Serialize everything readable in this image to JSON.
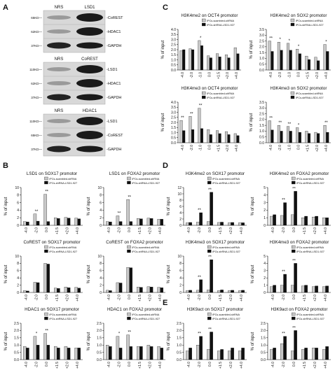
{
  "panel_labels": [
    "A",
    "B",
    "C",
    "D",
    "E"
  ],
  "blots": [
    {
      "header": [
        "NRS",
        "LSD1"
      ],
      "weights": [
        "65KD—",
        "62KD—",
        "37KD—"
      ],
      "proteins": [
        "-CoREST",
        "-HDAC1",
        "-GAPDH"
      ]
    },
    {
      "header": [
        "NRS",
        "CoREST"
      ],
      "weights": [
        "110KD—",
        "62KD—",
        "37KD—"
      ],
      "proteins": [
        "-LSD1",
        "-HDAC1",
        "-GAPDH"
      ]
    },
    {
      "header": [
        "NRS",
        "HDAC1"
      ],
      "weights": [
        "110KD—",
        "65KD—",
        "37KD—"
      ],
      "proteins": [
        "-LSD1",
        "-CoREST",
        "-GAPDH"
      ]
    }
  ],
  "chart_data": [
    {
      "type": "bar",
      "title": "H3K4me2 on OCT4 promotor",
      "y_label": "% of input",
      "categories": [
        "-4.0",
        "-2.0",
        "-1.0",
        "0.0",
        "+1.5",
        "+2.0",
        "+4.0"
      ],
      "series": [
        {
          "name": "iPCs-scambled-shRNA",
          "color": "#c8c8c8",
          "values": [
            1.9,
            2.1,
            2.9,
            1.4,
            1.6,
            1.5,
            2.2
          ]
        },
        {
          "name": "iPCs-shRNA-LSD1-927",
          "color": "#111111",
          "values": [
            2.0,
            2.0,
            2.4,
            1.2,
            1.3,
            1.2,
            1.6
          ]
        }
      ],
      "ylim": [
        0,
        4
      ],
      "yticks": [
        {
          "value": 0,
          "label": "0.0"
        },
        0.5,
        {
          "value": 1,
          "label": "1.0"
        },
        1.5,
        {
          "value": 2,
          "label": "2.0"
        },
        2.5,
        {
          "value": 3,
          "label": "3.0"
        },
        3.5,
        {
          "value": 4,
          "label": "4.0"
        }
      ],
      "annotations": [
        {
          "category": "-1.0",
          "text": "*"
        }
      ]
    },
    {
      "type": "bar",
      "title": "H3K4me2 on SOX2 promotor",
      "y_label": "% of input",
      "categories": [
        "-4.0",
        "-2.0",
        "-1.0",
        "0.0",
        "+1.5",
        "+2.0",
        "+4.0"
      ],
      "series": [
        {
          "name": "iPCs-scambled-shRNA",
          "color": "#c8c8c8",
          "values": [
            2.5,
            2.4,
            2.3,
            1.8,
            1.2,
            1.1,
            2.2
          ]
        },
        {
          "name": "iPCs-shRNA-LSD1-927",
          "color": "#111111",
          "values": [
            1.6,
            1.7,
            1.7,
            1.4,
            0.9,
            0.8,
            1.6
          ]
        }
      ],
      "ylim": [
        0,
        3.5
      ],
      "yticks": [
        {
          "value": 0,
          "label": "0.0"
        },
        0.5,
        {
          "value": 1,
          "label": "1.0"
        },
        1.5,
        {
          "value": 2,
          "label": "2.0"
        },
        2.5,
        {
          "value": 3,
          "label": "3.0"
        },
        3.5
      ],
      "annotations": [
        {
          "category": "-4.0",
          "text": "**"
        },
        {
          "category": "-2.0",
          "text": "*"
        },
        {
          "category": "-1.0",
          "text": "*"
        },
        {
          "category": "0.0",
          "text": "*"
        },
        {
          "category": "+4.0",
          "text": "*"
        }
      ]
    },
    {
      "type": "bar",
      "title": "H3K4me3 on OCT4 promotor",
      "y_label": "% of input",
      "categories": [
        "-4.0",
        "-2.0",
        "-1.0",
        "0.0",
        "+1.5",
        "+2.0",
        "+4.0"
      ],
      "series": [
        {
          "name": "iPCs-scambled-shRNA",
          "color": "#c8c8c8",
          "values": [
            2.2,
            2.6,
            3.4,
            1.3,
            1.2,
            1.1,
            0.9
          ]
        },
        {
          "name": "iPCs-shRNA-LSD1-927",
          "color": "#111111",
          "values": [
            1.2,
            1.3,
            1.4,
            0.8,
            0.9,
            0.8,
            0.7
          ]
        }
      ],
      "ylim": [
        0,
        4
      ],
      "yticks": [
        {
          "value": 0,
          "label": "0.0"
        },
        0.5,
        {
          "value": 1,
          "label": "1.0"
        },
        1.5,
        {
          "value": 2,
          "label": "2.0"
        },
        2.5,
        {
          "value": 3,
          "label": "3.0"
        },
        3.5,
        {
          "value": 4,
          "label": "4.0"
        }
      ],
      "annotations": [
        {
          "category": "-4.0",
          "text": "**"
        },
        {
          "category": "-2.0",
          "text": "**"
        },
        {
          "category": "-1.0",
          "text": "**"
        }
      ]
    },
    {
      "type": "bar",
      "title": "H3K4me3 on SOX2 promotor",
      "y_label": "% of input",
      "categories": [
        "-4.0",
        "-2.0",
        "-1.0",
        "0.0",
        "+1.5",
        "+2.0",
        "+4.0"
      ],
      "series": [
        {
          "name": "iPCs-scambled-shRNA",
          "color": "#c8c8c8",
          "values": [
            1.9,
            1.5,
            1.4,
            1.3,
            1.0,
            0.9,
            1.5
          ]
        },
        {
          "name": "iPCs-shRNA-LSD1-927",
          "color": "#111111",
          "values": [
            1.1,
            1.0,
            1.0,
            0.9,
            0.8,
            0.8,
            0.9
          ]
        }
      ],
      "ylim": [
        0,
        3.5
      ],
      "yticks": [
        {
          "value": 0,
          "label": "0.0"
        },
        0.5,
        {
          "value": 1,
          "label": "1.0"
        },
        1.5,
        {
          "value": 2,
          "label": "2.0"
        },
        2.5,
        {
          "value": 3,
          "label": "3.0"
        },
        3.5
      ],
      "annotations": [
        {
          "category": "-4.0",
          "text": "**"
        },
        {
          "category": "-2.0",
          "text": "**"
        },
        {
          "category": "-1.0",
          "text": "**"
        },
        {
          "category": "0.0",
          "text": "*"
        },
        {
          "category": "+4.0",
          "text": "**"
        }
      ]
    },
    {
      "type": "bar",
      "title": "LSD1 on SOX17 promotor",
      "y_label": "% of input",
      "categories": [
        "-4.0",
        "-2.0",
        "0.0",
        "+1.5",
        "+2.0",
        "+4.0"
      ],
      "series": [
        {
          "name": "iPCs-scambled-shRNA",
          "color": "#c8c8c8",
          "values": [
            1.0,
            3.0,
            8.2,
            2.0,
            2.1,
            1.9
          ]
        },
        {
          "name": "iPCs-shRNA-LSD1-927",
          "color": "#111111",
          "values": [
            0.9,
            1.1,
            1.0,
            1.8,
            1.9,
            1.7
          ]
        }
      ],
      "ylim": [
        0,
        10
      ],
      "yticks": [
        0,
        2,
        4,
        6,
        8,
        10
      ],
      "annotations": [
        {
          "category": "-2.0",
          "text": "**"
        },
        {
          "category": "0.0",
          "text": "**"
        }
      ]
    },
    {
      "type": "bar",
      "title": "LSD1 on FOXA2 promotor",
      "y_label": "% of input",
      "categories": [
        "-4.0",
        "-2.0",
        "0.0",
        "+1.5",
        "+2.0",
        "+4.0"
      ],
      "series": [
        {
          "name": "iPCs-scambled-shRNA",
          "color": "#c8c8c8",
          "values": [
            1.0,
            2.5,
            6.8,
            1.8,
            1.9,
            1.6
          ]
        },
        {
          "name": "iPCs-shRNA-LSD1-927",
          "color": "#111111",
          "values": [
            0.9,
            1.0,
            1.0,
            1.7,
            1.8,
            1.6
          ]
        }
      ],
      "ylim": [
        0,
        10
      ],
      "yticks": [
        0,
        2,
        4,
        6,
        8,
        10
      ],
      "annotations": [
        {
          "category": "-2.0",
          "text": "**"
        },
        {
          "category": "0.0",
          "text": "**"
        }
      ]
    },
    {
      "type": "bar",
      "title": "CoREST on SOX17 promotor",
      "y_label": "% of input",
      "categories": [
        "-4.0",
        "-2.0",
        "0.0",
        "+1.5",
        "+2.0",
        "+4.0"
      ],
      "series": [
        {
          "name": "iPCs-scambled-shRNA",
          "color": "#c8c8c8",
          "values": [
            0.5,
            2.8,
            8.0,
            1.2,
            1.5,
            1.4
          ]
        },
        {
          "name": "iPCs-shRNA-LSD1-927",
          "color": "#111111",
          "values": [
            0.4,
            2.7,
            7.8,
            1.1,
            1.3,
            1.2
          ]
        }
      ],
      "ylim": [
        0,
        10
      ],
      "yticks": [
        0,
        2,
        4,
        6,
        8,
        10
      ],
      "annotations": []
    },
    {
      "type": "bar",
      "title": "CoREST on FOXA2 promotor",
      "y_label": "% of input",
      "categories": [
        "-4.0",
        "-2.0",
        "0.0",
        "+1.5",
        "+2.0",
        "+4.0"
      ],
      "series": [
        {
          "name": "iPCs-scambled-shRNA",
          "color": "#c8c8c8",
          "values": [
            0.6,
            2.7,
            6.9,
            1.5,
            1.6,
            1.4
          ]
        },
        {
          "name": "iPCs-shRNA-LSD1-927",
          "color": "#111111",
          "values": [
            0.5,
            2.6,
            6.8,
            1.4,
            1.5,
            1.3
          ]
        }
      ],
      "ylim": [
        0,
        10
      ],
      "yticks": [
        0,
        2,
        4,
        6,
        8,
        10
      ],
      "annotations": []
    },
    {
      "type": "bar",
      "title": "HDAC1 on SOX17 promotor",
      "y_label": "% of input",
      "categories": [
        "-4.0",
        "-2.0",
        "0.0",
        "+1.5",
        "+2.0",
        "+4.0"
      ],
      "series": [
        {
          "name": "iPCs-scambled-shRNA",
          "color": "#c8c8c8",
          "values": [
            0.9,
            1.6,
            1.8,
            0.9,
            0.9,
            0.8
          ]
        },
        {
          "name": "iPCs-shRNA-LSD1-927",
          "color": "#111111",
          "values": [
            0.8,
            1.0,
            1.0,
            0.8,
            0.8,
            0.8
          ]
        }
      ],
      "ylim": [
        0,
        2.5
      ],
      "yticks": [
        {
          "value": 0,
          "label": "0.0"
        },
        0.5,
        {
          "value": 1,
          "label": "1.0"
        },
        1.5,
        {
          "value": 2,
          "label": "2.0"
        },
        2.5
      ],
      "annotations": [
        {
          "category": "-2.0",
          "text": "*"
        },
        {
          "category": "0.0",
          "text": "**"
        }
      ]
    },
    {
      "type": "bar",
      "title": "HDAC1 on FOXA2 promotor",
      "y_label": "% of input",
      "categories": [
        "-4.0",
        "-2.0",
        "0.0",
        "+1.5",
        "+2.0",
        "+4.0"
      ],
      "series": [
        {
          "name": "iPCs-scambled-shRNA",
          "color": "#c8c8c8",
          "values": [
            1.0,
            1.6,
            1.7,
            0.9,
            1.0,
            0.9
          ]
        },
        {
          "name": "iPCs-shRNA-LSD1-927",
          "color": "#111111",
          "values": [
            0.9,
            0.8,
            0.9,
            0.9,
            0.9,
            0.8
          ]
        }
      ],
      "ylim": [
        0,
        2.5
      ],
      "yticks": [
        {
          "value": 0,
          "label": "0.0"
        },
        0.5,
        {
          "value": 1,
          "label": "1.0"
        },
        1.5,
        {
          "value": 2,
          "label": "2.0"
        },
        2.5
      ],
      "annotations": [
        {
          "category": "-2.0",
          "text": "*"
        },
        {
          "category": "0.0",
          "text": "**"
        }
      ]
    },
    {
      "type": "bar",
      "title": "H3K4me2 on SOX17 promotor",
      "y_label": "% of input",
      "categories": [
        "-4.0",
        "-2.0",
        "0.0",
        "+1.5",
        "+2.0",
        "+4.0"
      ],
      "series": [
        {
          "name": "iPCs-scambled-shRNA",
          "color": "#c8c8c8",
          "values": [
            0.8,
            1.0,
            1.2,
            0.9,
            0.8,
            0.8
          ]
        },
        {
          "name": "iPCs-shRNA-LSD1-927",
          "color": "#111111",
          "values": [
            0.9,
            4.0,
            10.5,
            1.0,
            0.9,
            0.8
          ]
        }
      ],
      "ylim": [
        0,
        12
      ],
      "yticks": [
        0,
        2,
        4,
        6,
        8,
        10,
        12
      ],
      "annotations": [
        {
          "category": "-2.0",
          "text": "**"
        },
        {
          "category": "0.0",
          "text": "**"
        }
      ]
    },
    {
      "type": "bar",
      "title": "H3K4me2 on FOXA2 promotor",
      "y_label": "% of input",
      "categories": [
        "-4.0",
        "-2.0",
        "0.0",
        "+1.5",
        "+2.0",
        "+4.0"
      ],
      "series": [
        {
          "name": "iPCs-scambled-shRNA",
          "color": "#c8c8c8",
          "values": [
            1.2,
            1.3,
            1.4,
            1.0,
            1.1,
            1.0
          ]
        },
        {
          "name": "iPCs-shRNA-LSD1-927",
          "color": "#111111",
          "values": [
            1.4,
            3.0,
            4.5,
            1.2,
            1.2,
            1.0
          ]
        }
      ],
      "ylim": [
        0,
        5
      ],
      "yticks": [
        0,
        1,
        2,
        3,
        4,
        5
      ],
      "annotations": [
        {
          "category": "-2.0",
          "text": "**"
        },
        {
          "category": "0.0",
          "text": "**"
        }
      ]
    },
    {
      "type": "bar",
      "title": "H3K4me3 on SOX17 promotor",
      "y_label": "% of input",
      "categories": [
        "-4.0",
        "-2.0",
        "0.0",
        "+1.5",
        "+2.0",
        "+4.0"
      ],
      "series": [
        {
          "name": "iPCs-scambled-shRNA",
          "color": "#c8c8c8",
          "values": [
            0.5,
            0.6,
            0.7,
            0.5,
            0.5,
            0.5
          ]
        },
        {
          "name": "iPCs-shRNA-LSD1-927",
          "color": "#111111",
          "values": [
            0.6,
            3.5,
            9.0,
            0.7,
            0.6,
            0.6
          ]
        }
      ],
      "ylim": [
        0,
        10
      ],
      "yticks": [
        0,
        2,
        4,
        6,
        8,
        10
      ],
      "annotations": [
        {
          "category": "-2.0",
          "text": "**"
        },
        {
          "category": "0.0",
          "text": "**"
        }
      ]
    },
    {
      "type": "bar",
      "title": "H3K4me3 on FOXA2 promotor",
      "y_label": "% of input",
      "categories": [
        "-4.0",
        "-2.0",
        "0.0",
        "+1.5",
        "+2.0",
        "+4.0"
      ],
      "series": [
        {
          "name": "iPCs-scambled-shRNA",
          "color": "#c8c8c8",
          "values": [
            0.8,
            1.0,
            1.0,
            0.9,
            0.8,
            0.8
          ]
        },
        {
          "name": "iPCs-shRNA-LSD1-927",
          "color": "#111111",
          "values": [
            1.0,
            2.5,
            4.0,
            1.0,
            0.9,
            0.9
          ]
        }
      ],
      "ylim": [
        0,
        5
      ],
      "yticks": [
        0,
        1,
        2,
        3,
        4,
        5
      ],
      "annotations": [
        {
          "category": "-2.0",
          "text": "**"
        },
        {
          "category": "0.0",
          "text": "**"
        }
      ]
    },
    {
      "type": "bar",
      "title": "H3K9act on SOX17 promotor",
      "y_label": "% of input",
      "categories": [
        "-4.0",
        "-2.0",
        "0.0",
        "+1.5",
        "+2.0",
        "+4.0"
      ],
      "series": [
        {
          "name": "iPCs-scambled-shRNA",
          "color": "#c8c8c8",
          "values": [
            0.6,
            1.0,
            0.7,
            0.6,
            0.6,
            0.6
          ]
        },
        {
          "name": "iPCs-shRNA-LSD1-927",
          "color": "#111111",
          "values": [
            0.8,
            1.6,
            1.9,
            0.7,
            0.8,
            0.8
          ]
        }
      ],
      "ylim": [
        0,
        2.5
      ],
      "yticks": [
        {
          "value": 0,
          "label": "0.0"
        },
        0.5,
        {
          "value": 1,
          "label": "1.0"
        },
        1.5,
        {
          "value": 2,
          "label": "2.0"
        },
        2.5
      ],
      "annotations": [
        {
          "category": "-2.0",
          "text": "**"
        },
        {
          "category": "0.0",
          "text": "**"
        }
      ]
    },
    {
      "type": "bar",
      "title": "H3K9act on FOXA2 promotor",
      "y_label": "% of input",
      "categories": [
        "-4.0",
        "-2.0",
        "0.0",
        "+1.5",
        "+2.0",
        "+4.0"
      ],
      "series": [
        {
          "name": "iPCs-scambled-shRNA",
          "color": "#c8c8c8",
          "values": [
            0.7,
            1.1,
            0.6,
            0.7,
            0.8,
            0.7
          ]
        },
        {
          "name": "iPCs-shRNA-LSD1-927",
          "color": "#111111",
          "values": [
            0.8,
            1.6,
            2.0,
            0.8,
            0.8,
            0.9
          ]
        }
      ],
      "ylim": [
        0,
        2.5
      ],
      "yticks": [
        {
          "value": 0,
          "label": "0.0"
        },
        0.5,
        {
          "value": 1,
          "label": "1.0"
        },
        1.5,
        {
          "value": 2,
          "label": "2.0"
        },
        2.5
      ],
      "annotations": [
        {
          "category": "-2.0",
          "text": "**"
        },
        {
          "category": "0.0",
          "text": "**"
        }
      ]
    }
  ]
}
